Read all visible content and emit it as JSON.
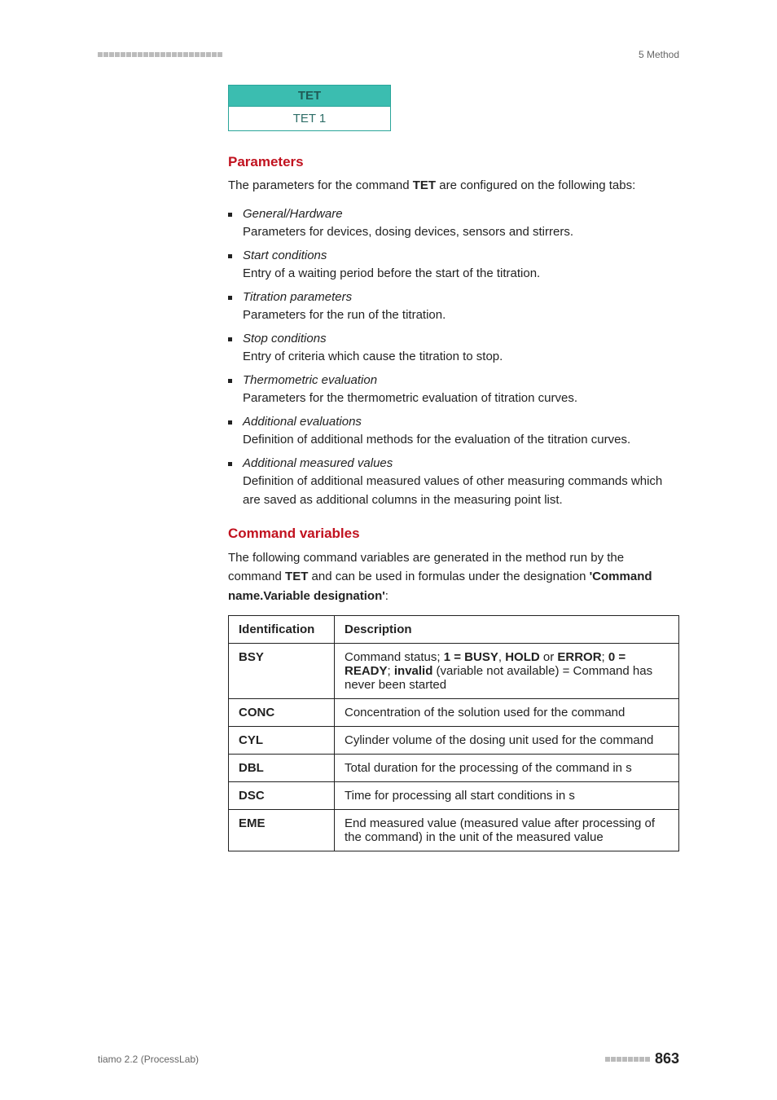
{
  "header": {
    "section_label": "5 Method"
  },
  "tet_card": {
    "title": "TET",
    "value": "TET 1",
    "header_bg": "#3bbdb0",
    "border_color": "#2aa59a",
    "header_text_color": "#1f5a55",
    "value_text_color": "#2e6e68"
  },
  "parameters": {
    "heading": "Parameters",
    "intro_prefix": "The parameters for the command ",
    "intro_cmd": "TET",
    "intro_suffix": " are configured on the following tabs:",
    "items": [
      {
        "title": "General/Hardware",
        "desc": "Parameters for devices, dosing devices, sensors and stirrers."
      },
      {
        "title": "Start conditions",
        "desc": "Entry of a waiting period before the start of the titration."
      },
      {
        "title": "Titration parameters",
        "desc": "Parameters for the run of the titration."
      },
      {
        "title": "Stop conditions",
        "desc": "Entry of criteria which cause the titration to stop."
      },
      {
        "title": "Thermometric evaluation",
        "desc": "Parameters for the thermometric evaluation of titration curves."
      },
      {
        "title": "Additional evaluations",
        "desc": "Definition of additional methods for the evaluation of the titration curves."
      },
      {
        "title": "Additional measured values",
        "desc": "Definition of additional measured values of other measuring commands which are saved as additional columns in the measuring point list."
      }
    ]
  },
  "command_variables": {
    "heading": "Command variables",
    "intro_prefix": "The following command variables are generated in the method run by the command ",
    "intro_cmd": "TET",
    "intro_mid": " and can be used in formulas under the designation ",
    "intro_designation": "'Command name.Variable designation'",
    "intro_suffix": ":",
    "columns": [
      "Identification",
      "Description"
    ],
    "rows": [
      {
        "id": "BSY",
        "desc_parts": [
          {
            "t": "Command status; "
          },
          {
            "t": "1 = BUSY",
            "b": true
          },
          {
            "t": ", "
          },
          {
            "t": "HOLD",
            "b": true
          },
          {
            "t": " or "
          },
          {
            "t": "ERROR",
            "b": true
          },
          {
            "t": "; "
          },
          {
            "t": "0 = READY",
            "b": true
          },
          {
            "t": "; "
          },
          {
            "t": "invalid",
            "b": true
          },
          {
            "t": " (variable not available) = Command has never been started"
          }
        ]
      },
      {
        "id": "CONC",
        "desc": "Concentration of the solution used for the command"
      },
      {
        "id": "CYL",
        "desc": "Cylinder volume of the dosing unit used for the command"
      },
      {
        "id": "DBL",
        "desc": "Total duration for the processing of the command in s"
      },
      {
        "id": "DSC",
        "desc": "Time for processing all start conditions in s"
      },
      {
        "id": "EME",
        "desc": "End measured value (measured value after processing of the command) in the unit of the measured value"
      }
    ]
  },
  "footer": {
    "product": "tiamo 2.2 (ProcessLab)",
    "page": "863"
  },
  "colors": {
    "heading_red": "#c1121f",
    "text": "#222222",
    "muted": "#666666",
    "dots": "#bbbbbb",
    "bg": "#ffffff"
  },
  "typography": {
    "body_fontsize_pt": 11,
    "heading_fontsize_pt": 13,
    "pagenum_fontsize_pt": 14
  }
}
